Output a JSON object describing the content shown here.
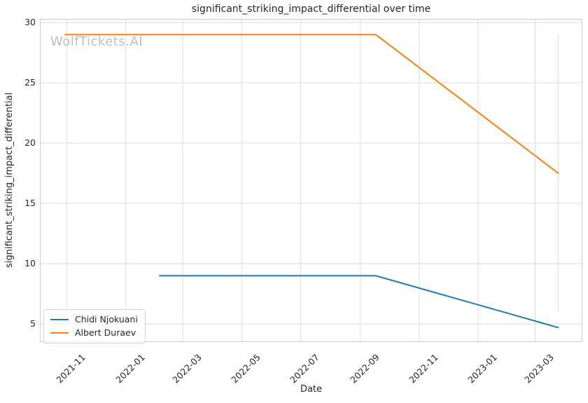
{
  "watermark": "WolfTickets.AI",
  "chart_data": {
    "type": "line",
    "title": "significant_striking_impact_differential over time",
    "xlabel": "Date",
    "ylabel": "significant_striking_impact_differential",
    "grid": true,
    "legend_position": "lower left",
    "x_axis": {
      "xlim": [
        "2021-10-04",
        "2023-04-19"
      ],
      "ticks": [
        {
          "label": "2021-11",
          "date": "2021-11-01"
        },
        {
          "label": "2022-01",
          "date": "2022-01-01"
        },
        {
          "label": "2022-03",
          "date": "2022-03-01"
        },
        {
          "label": "2022-05",
          "date": "2022-05-01"
        },
        {
          "label": "2022-07",
          "date": "2022-07-01"
        },
        {
          "label": "2022-09",
          "date": "2022-09-01"
        },
        {
          "label": "2022-11",
          "date": "2022-11-01"
        },
        {
          "label": "2023-01",
          "date": "2023-01-01"
        },
        {
          "label": "2023-03",
          "date": "2023-03-01"
        }
      ]
    },
    "y_axis": {
      "ylim": [
        3.5,
        30.3
      ],
      "ticks": [
        5,
        10,
        15,
        20,
        25,
        30
      ]
    },
    "series": [
      {
        "name": "Chidi Njokuani",
        "color": "#1f77b4",
        "points": [
          {
            "date": "2022-02-05",
            "value": 9
          },
          {
            "date": "2022-09-17",
            "value": 9
          },
          {
            "date": "2023-03-25",
            "value": 4.7
          }
        ]
      },
      {
        "name": "Albert Duraev",
        "color": "#ff7f0e",
        "points": [
          {
            "date": "2021-10-30",
            "value": 29
          },
          {
            "date": "2022-09-17",
            "value": 29
          },
          {
            "date": "2023-03-25",
            "value": 17.5
          }
        ]
      }
    ],
    "event_vline": {
      "date": "2023-03-25",
      "from": 6.0,
      "to": 29.0,
      "color": "#ff7f0e",
      "opacity": 0.3
    }
  }
}
